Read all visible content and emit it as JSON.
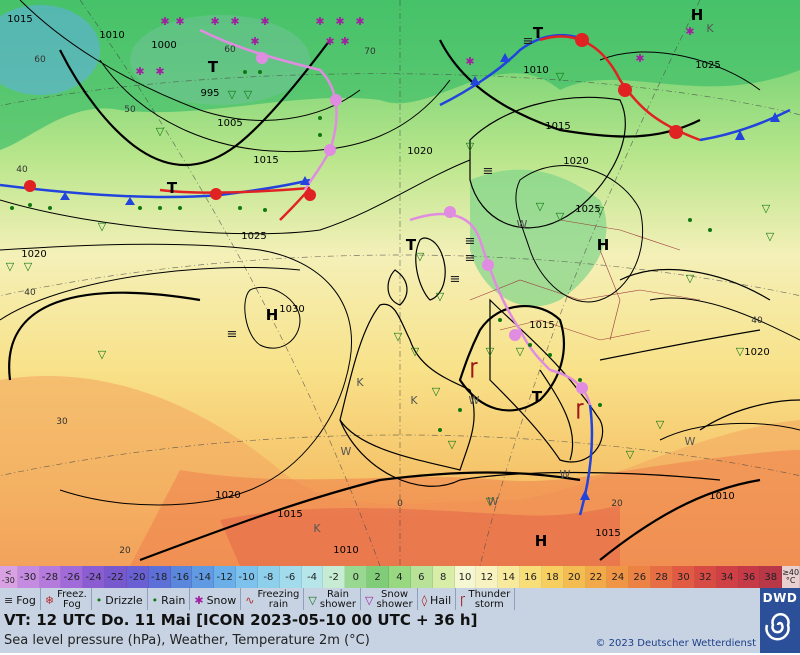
{
  "map": {
    "isobar_labels": [
      {
        "text": "1015"
      },
      {
        "text": "1010"
      },
      {
        "text": "1000"
      },
      {
        "text": "995"
      },
      {
        "text": "1005"
      },
      {
        "text": "1015"
      },
      {
        "text": "1020"
      },
      {
        "text": "1025"
      },
      {
        "text": "1020"
      },
      {
        "text": "1030"
      },
      {
        "text": "1010"
      },
      {
        "text": "1015"
      },
      {
        "text": "1020"
      },
      {
        "text": "1025"
      },
      {
        "text": "1015"
      },
      {
        "text": "1020"
      },
      {
        "text": "1010"
      },
      {
        "text": "1015"
      },
      {
        "text": "1020"
      },
      {
        "text": "1015"
      },
      {
        "text": "1010"
      },
      {
        "text": "1025"
      }
    ],
    "grid_labels": [
      "60",
      "50",
      "40",
      "30",
      "20",
      "60",
      "70",
      "40",
      "0",
      "20",
      "40"
    ],
    "pressure_centers": [
      "H",
      "H",
      "H",
      "H",
      "T",
      "T",
      "T",
      "T",
      "T"
    ],
    "weak_labels": [
      "K",
      "K",
      "K",
      "K",
      "W",
      "W",
      "W",
      "W",
      "W",
      "W"
    ]
  },
  "temperature_scale": {
    "values": [
      "<\n-30",
      "-30",
      "-28",
      "-26",
      "-24",
      "-22",
      "-20",
      "-18",
      "-16",
      "-14",
      "-12",
      "-10",
      "-8",
      "-6",
      "-4",
      "-2",
      "0",
      "2",
      "4",
      "6",
      "8",
      "10",
      "12",
      "14",
      "16",
      "18",
      "20",
      "22",
      "24",
      "26",
      "28",
      "30",
      "32",
      "34",
      "36",
      "38",
      "≥40\n°C"
    ],
    "colors": [
      "#d9a2e2",
      "#c58be0",
      "#b47bdc",
      "#a06bd8",
      "#8a5ed2",
      "#7858cd",
      "#6a60d4",
      "#5c70d8",
      "#5a86dc",
      "#5f9ae2",
      "#6bafe8",
      "#7cc2ec",
      "#8ed0ec",
      "#a2dcec",
      "#b6e6ea",
      "#c6ecd4",
      "#98d890",
      "#80cc78",
      "#98d880",
      "#b8e298",
      "#d8eea8",
      "#f5f7d2",
      "#f8f2c0",
      "#f8ea9c",
      "#f8de78",
      "#f6cf60",
      "#f4bd52",
      "#f2a94a",
      "#ef9545",
      "#ec8244",
      "#e76e44",
      "#e05a44",
      "#d84a44",
      "#ce4046",
      "#c63a48",
      "#b83848",
      "#e8d0d0"
    ]
  },
  "legend": {
    "items": [
      {
        "icon": "≡",
        "label": "Fog"
      },
      {
        "icon": "❄",
        "label": "Freez.\nFog"
      },
      {
        "icon": "•",
        "label": "Drizzle"
      },
      {
        "icon": "•",
        "label": "Rain"
      },
      {
        "icon": "✱",
        "label": "Snow"
      },
      {
        "icon": "∿",
        "label": "Freezing\nrain"
      },
      {
        "icon": "▽",
        "label": "Rain\nshower"
      },
      {
        "icon": "▽",
        "label": "Snow\nshower"
      },
      {
        "icon": "◊",
        "label": "Hail"
      },
      {
        "icon": "Ꞅ",
        "label": "Thunder\nstorm"
      }
    ]
  },
  "info": {
    "valid_time": "VT: 12 UTC Do.  11 Mai [ICON 2023-05-10  00 UTC + 36 h]",
    "description": "Sea level pressure (hPa), Weather, Temperature 2m (°C)",
    "copyright": "© 2023 Deutscher Wetterdienst",
    "logo": "DWD"
  }
}
